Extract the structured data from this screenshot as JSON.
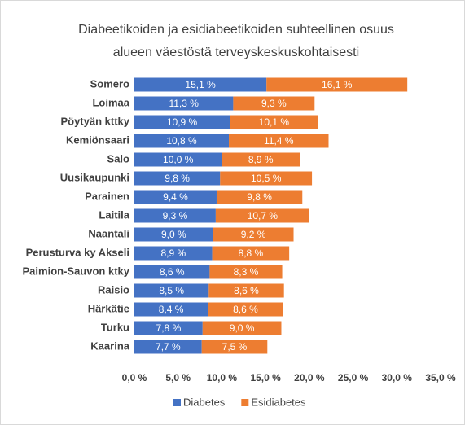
{
  "chart_data": {
    "type": "bar",
    "orientation": "horizontal",
    "stacked": true,
    "title": [
      "Diabeetikoiden ja esidiabeetikoiden suhteellinen osuus",
      "alueen väestöstä terveyskeskuskohtaisesti"
    ],
    "categories": [
      "Somero",
      "Loimaa",
      "Pöytyän kttky",
      "Kemiönsaari",
      "Salo",
      "Uusikaupunki",
      "Parainen",
      "Laitila",
      "Naantali",
      "Perusturva ky Akseli",
      "Paimion-Sauvon ktky",
      "Raisio",
      "Härkätie",
      "Turku",
      "Kaarina"
    ],
    "series": [
      {
        "name": "Diabetes",
        "color": "#4472c4",
        "values": [
          15.1,
          11.3,
          10.9,
          10.8,
          10.0,
          9.8,
          9.4,
          9.3,
          9.0,
          8.9,
          8.6,
          8.5,
          8.4,
          7.8,
          7.7
        ],
        "value_labels": [
          "15,1 %",
          "11,3 %",
          "10,9 %",
          "10,8 %",
          "10,0 %",
          "9,8 %",
          "9,4 %",
          "9,3 %",
          "9,0 %",
          "8,9 %",
          "8,6 %",
          "8,5 %",
          "8,4 %",
          "7,8 %",
          "7,7 %"
        ]
      },
      {
        "name": "Esidiabetes",
        "color": "#ed7d31",
        "values": [
          16.1,
          9.3,
          10.1,
          11.4,
          8.9,
          10.5,
          9.8,
          10.7,
          9.2,
          8.8,
          8.3,
          8.6,
          8.6,
          9.0,
          7.5
        ],
        "value_labels": [
          "16,1 %",
          "9,3 %",
          "10,1 %",
          "11,4 %",
          "8,9 %",
          "10,5 %",
          "9,8 %",
          "10,7 %",
          "9,2 %",
          "8,8 %",
          "8,3 %",
          "8,6 %",
          "8,6 %",
          "9,0 %",
          "7,5 %"
        ]
      }
    ],
    "xlim": [
      0,
      35
    ],
    "xticks": [
      {
        "value": 0,
        "label": "0,0 %"
      },
      {
        "value": 5,
        "label": "5,0 %"
      },
      {
        "value": 10,
        "label": "10,0 %"
      },
      {
        "value": 15,
        "label": "15,0 %"
      },
      {
        "value": 20,
        "label": "20,0 %"
      },
      {
        "value": 25,
        "label": "25,0 %"
      },
      {
        "value": 30,
        "label": "30,0 %"
      },
      {
        "value": 35,
        "label": "35,0 %"
      }
    ],
    "grid": false,
    "legend": "bottom"
  }
}
